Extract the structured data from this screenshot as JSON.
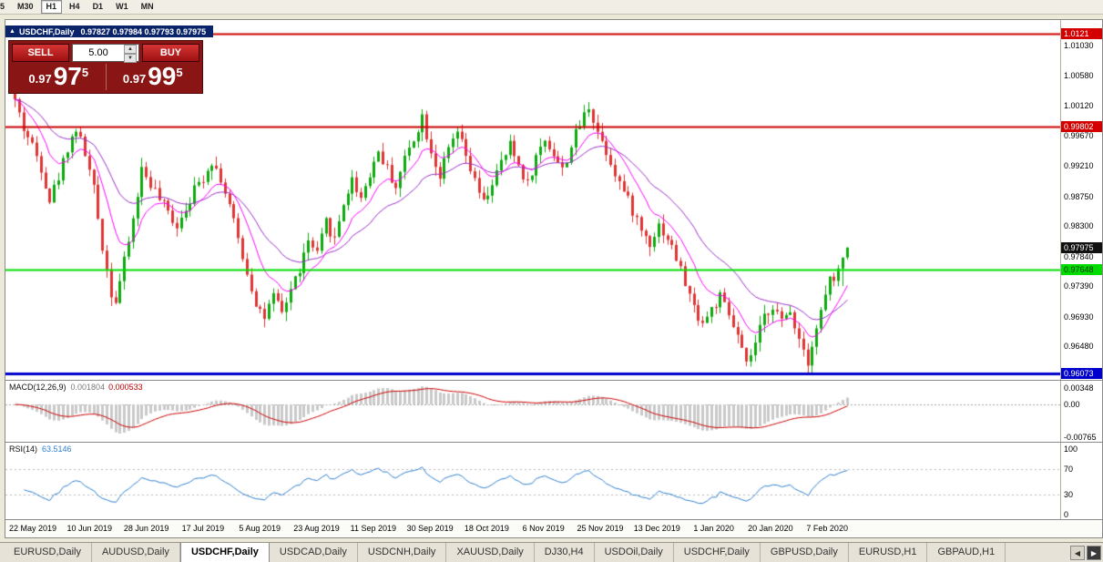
{
  "toolbar": {
    "timeframes": [
      {
        "label": "5",
        "active": false,
        "partial": true
      },
      {
        "label": "M30",
        "active": false
      },
      {
        "label": "H1",
        "active": true
      },
      {
        "label": "H4",
        "active": false
      },
      {
        "label": "D1",
        "active": false
      },
      {
        "label": "W1",
        "active": false
      },
      {
        "label": "MN",
        "active": false
      }
    ]
  },
  "icons": {
    "window": "▲",
    "volume_up": "▲",
    "volume_down": "▼",
    "scroll_left": "◀",
    "scroll_right": "▶"
  },
  "chart": {
    "symbol_period": "USDCHF,Daily",
    "ohlc": "0.97827 0.97984 0.97793 0.97975"
  },
  "trade_panel": {
    "sell_label": "SELL",
    "buy_label": "BUY",
    "volume": "5.00",
    "sell_price": {
      "prefix": "0.97",
      "big": "97",
      "sup": "5"
    },
    "buy_price": {
      "prefix": "0.97",
      "big": "99",
      "sup": "5"
    }
  },
  "price_scale": {
    "labels": [
      {
        "text": "1.01030",
        "price": 1.0103
      },
      {
        "text": "1.00580",
        "price": 1.0058
      },
      {
        "text": "1.00120",
        "price": 1.0012
      },
      {
        "text": "0.99670",
        "price": 0.9967
      },
      {
        "text": "0.99210",
        "price": 0.9921
      },
      {
        "text": "0.98750",
        "price": 0.9875
      },
      {
        "text": "0.98300",
        "price": 0.983
      },
      {
        "text": "0.97840",
        "price": 0.9784
      },
      {
        "text": "0.97390",
        "price": 0.9739
      },
      {
        "text": "0.96930",
        "price": 0.9693
      },
      {
        "text": "0.96480",
        "price": 0.9648
      }
    ],
    "badges": [
      {
        "text": "1.0121",
        "price": 1.01211,
        "bg": "#d40000",
        "fg": "#ffffff"
      },
      {
        "text": "0.99802",
        "price": 0.99802,
        "bg": "#d40000",
        "fg": "#ffffff"
      },
      {
        "text": "0.97975",
        "price": 0.97975,
        "bg": "#111111",
        "fg": "#ffffff"
      },
      {
        "text": "0.97648",
        "price": 0.97648,
        "bg": "#00dc00",
        "fg": "#013301"
      },
      {
        "text": "0.96073",
        "price": 0.96073,
        "bg": "#0000cd",
        "fg": "#ffffff"
      }
    ]
  },
  "indicators": {
    "macd": {
      "label": "MACD(12,26,9)",
      "value_main": "0.001804",
      "value_signal": "0.000533",
      "scale": [
        {
          "text": "0.00348",
          "value": 0.00348
        },
        {
          "text": "0.00",
          "value": 0
        },
        {
          "text": "-0.00765",
          "value": -0.00765
        }
      ]
    },
    "rsi": {
      "label": "RSI(14)",
      "value": "63.5146",
      "scale": [
        {
          "text": "100",
          "value": 100
        },
        {
          "text": "70",
          "value": 70
        },
        {
          "text": "30",
          "value": 30
        },
        {
          "text": "0",
          "value": 0
        }
      ],
      "levels": [
        30,
        70
      ]
    }
  },
  "date_axis": [
    "22 May 2019",
    "10 Jun 2019",
    "28 Jun 2019",
    "17 Jul 2019",
    "5 Aug 2019",
    "23 Aug 2019",
    "11 Sep 2019",
    "30 Sep 2019",
    "18 Oct 2019",
    "6 Nov 2019",
    "25 Nov 2019",
    "13 Dec 2019",
    "1 Jan 2020",
    "20 Jan 2020",
    "7 Feb 2020"
  ],
  "tabs": {
    "items": [
      {
        "label": "EURUSD,Daily",
        "active": false
      },
      {
        "label": "AUDUSD,Daily",
        "active": false
      },
      {
        "label": "USDCHF,Daily",
        "active": true
      },
      {
        "label": "USDCAD,Daily",
        "active": false
      },
      {
        "label": "USDCNH,Daily",
        "active": false
      },
      {
        "label": "XAUUSD,Daily",
        "active": false
      },
      {
        "label": "DJ30,H4",
        "active": false
      },
      {
        "label": "USDOil,Daily",
        "active": false
      },
      {
        "label": "USDCHF,Daily",
        "active": false
      },
      {
        "label": "GBPUSD,Daily",
        "active": false
      },
      {
        "label": "EURUSD,H1",
        "active": false
      },
      {
        "label": "GBPAUD,H1",
        "active": false
      }
    ]
  },
  "chart_data": {
    "type": "candlestick",
    "symbol": "USDCHF",
    "timeframe": "Daily",
    "last_ohlc": {
      "open": 0.97827,
      "high": 0.97984,
      "low": 0.97793,
      "close": 0.97975
    },
    "y_min": 0.96073,
    "y_max": 1.01211,
    "candle_count": 191,
    "seed": 42,
    "hlines": [
      {
        "price": 1.01211,
        "color": "#cc0000",
        "width": 2
      },
      {
        "price": 0.99802,
        "color": "#cc0000",
        "width": 2
      },
      {
        "price": 0.97648,
        "color": "#00dd00",
        "width": 2
      },
      {
        "price": 0.96073,
        "color": "#0000cd",
        "width": 3
      }
    ],
    "colors": {
      "up": "#0faa0f",
      "down": "#e03535",
      "ma_fast": "#ff00ff",
      "ma_slow": "#9a30c8",
      "macd_hist": "#c9c9c9",
      "macd_signal": "#cc0000",
      "rsi": "#2f7fd0",
      "level": "#b8b8b8"
    },
    "waypoints": [
      [
        0,
        1.002
      ],
      [
        2,
        0.9978
      ],
      [
        4,
        0.9952
      ],
      [
        6,
        0.992
      ],
      [
        8,
        0.987
      ],
      [
        10,
        0.9905
      ],
      [
        12,
        0.995
      ],
      [
        14,
        0.9978
      ],
      [
        16,
        0.994
      ],
      [
        18,
        0.9885
      ],
      [
        20,
        0.98
      ],
      [
        22,
        0.973
      ],
      [
        23,
        0.9718
      ],
      [
        25,
        0.9775
      ],
      [
        27,
        0.984
      ],
      [
        29,
        0.9916
      ],
      [
        31,
        0.9895
      ],
      [
        33,
        0.987
      ],
      [
        35,
        0.985
      ],
      [
        37,
        0.9832
      ],
      [
        39,
        0.986
      ],
      [
        41,
        0.9885
      ],
      [
        43,
        0.9905
      ],
      [
        45,
        0.993
      ],
      [
        47,
        0.9902
      ],
      [
        49,
        0.986
      ],
      [
        51,
        0.981
      ],
      [
        53,
        0.976
      ],
      [
        55,
        0.9715
      ],
      [
        57,
        0.9692
      ],
      [
        59,
        0.9722
      ],
      [
        61,
        0.9698
      ],
      [
        63,
        0.9735
      ],
      [
        65,
        0.9765
      ],
      [
        67,
        0.9806
      ],
      [
        69,
        0.9786
      ],
      [
        71,
        0.9836
      ],
      [
        73,
        0.981
      ],
      [
        75,
        0.9866
      ],
      [
        77,
        0.99
      ],
      [
        79,
        0.9874
      ],
      [
        81,
        0.991
      ],
      [
        83,
        0.9944
      ],
      [
        85,
        0.9916
      ],
      [
        87,
        0.989
      ],
      [
        89,
        0.9932
      ],
      [
        91,
        0.9964
      ],
      [
        93,
        0.9996
      ],
      [
        95,
        0.9944
      ],
      [
        97,
        0.9906
      ],
      [
        99,
        0.9944
      ],
      [
        101,
        0.9972
      ],
      [
        103,
        0.9934
      ],
      [
        105,
        0.9896
      ],
      [
        107,
        0.9864
      ],
      [
        109,
        0.9896
      ],
      [
        111,
        0.9924
      ],
      [
        113,
        0.9952
      ],
      [
        115,
        0.9922
      ],
      [
        117,
        0.9894
      ],
      [
        119,
        0.9934
      ],
      [
        121,
        0.9962
      ],
      [
        123,
        0.994
      ],
      [
        125,
        0.9914
      ],
      [
        127,
        0.9952
      ],
      [
        129,
        0.9984
      ],
      [
        131,
        1.0012
      ],
      [
        133,
        0.9974
      ],
      [
        135,
        0.9944
      ],
      [
        137,
        0.9912
      ],
      [
        139,
        0.9882
      ],
      [
        141,
        0.9854
      ],
      [
        143,
        0.9824
      ],
      [
        145,
        0.9806
      ],
      [
        147,
        0.9832
      ],
      [
        149,
        0.9812
      ],
      [
        151,
        0.9782
      ],
      [
        153,
        0.9744
      ],
      [
        155,
        0.9706
      ],
      [
        157,
        0.9684
      ],
      [
        159,
        0.9704
      ],
      [
        161,
        0.9722
      ],
      [
        163,
        0.9694
      ],
      [
        165,
        0.9662
      ],
      [
        167,
        0.9618
      ],
      [
        169,
        0.9652
      ],
      [
        171,
        0.9692
      ],
      [
        173,
        0.9712
      ],
      [
        175,
        0.9684
      ],
      [
        177,
        0.9702
      ],
      [
        179,
        0.9662
      ],
      [
        181,
        0.9628
      ],
      [
        183,
        0.9676
      ],
      [
        185,
        0.9726
      ],
      [
        186,
        0.9752
      ],
      [
        187,
        0.9742
      ],
      [
        188,
        0.976
      ],
      [
        189,
        0.9748
      ],
      [
        190,
        0.97975
      ]
    ]
  }
}
